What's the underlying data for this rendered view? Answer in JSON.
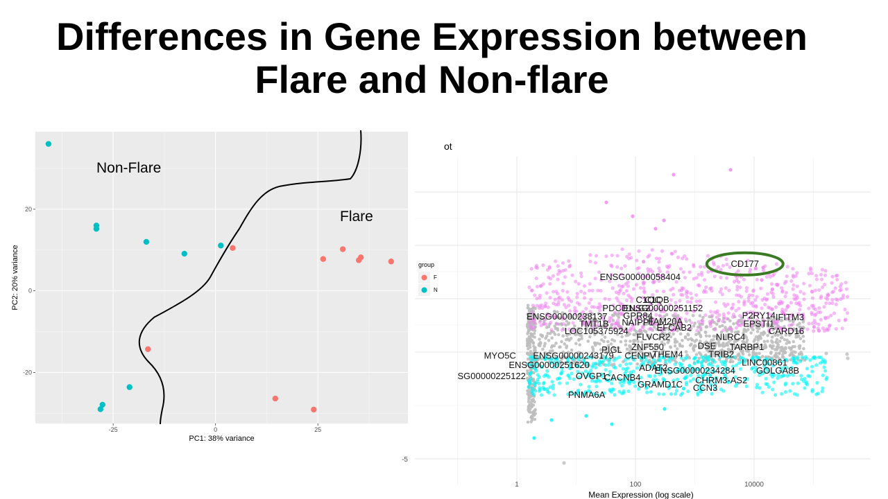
{
  "slide": {
    "title_line1": "Differences in Gene Expression between",
    "title_line2": "Flare and Non-flare"
  },
  "colors": {
    "flare": "#F8766D",
    "nonflare": "#00BFC4",
    "up": "#EE82EE",
    "down": "#00F5F5",
    "ns": "#BEBEBE",
    "panel": "#EBEBEB",
    "grid": "#FFFFFF",
    "highlight_ring": "#3A7A23"
  },
  "chart_data": [
    {
      "type": "scatter",
      "xlabel": "PC1: 38% variance",
      "ylabel": "PC2: 20% variance",
      "xlim": [
        -44,
        47
      ],
      "ylim": [
        -32.5,
        39
      ],
      "xticks": [
        -25,
        0,
        25
      ],
      "yticks": [
        -20,
        0,
        20
      ],
      "grid": true,
      "legend": {
        "title": "group",
        "position": "right",
        "entries": [
          "F",
          "N"
        ]
      },
      "annotations": [
        "Non-Flare",
        "Flare"
      ],
      "series": [
        {
          "name": "F",
          "color": "#F8766D",
          "points": [
            [
              4.2,
              10.5
            ],
            [
              26.3,
              7.8
            ],
            [
              31.1,
              10.2
            ],
            [
              35.0,
              7.5
            ],
            [
              35.5,
              8.2
            ],
            [
              42.9,
              7.2
            ],
            [
              -16.5,
              -14.3
            ],
            [
              14.6,
              -26.4
            ],
            [
              24.0,
              -29.1
            ]
          ]
        },
        {
          "name": "N",
          "color": "#00BFC4",
          "points": [
            [
              -40.8,
              36
            ],
            [
              -29.1,
              16
            ],
            [
              -29.1,
              15.2
            ],
            [
              -16.9,
              12
            ],
            [
              -7.6,
              9.1
            ],
            [
              1.3,
              11.1
            ],
            [
              -21.0,
              -23.6
            ],
            [
              -27.6,
              -27.9
            ],
            [
              -28.1,
              -29.0
            ]
          ]
        }
      ]
    },
    {
      "type": "scatter",
      "title_fragment": "ot",
      "xlabel": "Mean Expression (log scale)",
      "xscale": "log",
      "xticks": [
        "1",
        "100",
        "10000"
      ],
      "ylim": [
        -5.6,
        2.5
      ],
      "yticks": [
        -5
      ],
      "highlight": "CD177",
      "labels": [
        {
          "text": "CD177",
          "x": 7000,
          "y": 2.2
        },
        {
          "text": "ENSG00000058404",
          "x": 120,
          "y": 1.7
        },
        {
          "text": "C1QC",
          "x": 165,
          "y": 0.85
        },
        {
          "text": "C1QB",
          "x": 230,
          "y": 0.85
        },
        {
          "text": "PDCD1LG2",
          "x": 70,
          "y": 0.53
        },
        {
          "text": "ENSG00000251152",
          "x": 290,
          "y": 0.53
        },
        {
          "text": "GPR84",
          "x": 110,
          "y": 0.25
        },
        {
          "text": "ENSG00000238137",
          "x": 7,
          "y": 0.22
        },
        {
          "text": "P2RY14",
          "x": 12000,
          "y": 0.26
        },
        {
          "text": "IFITM3",
          "x": 40000,
          "y": 0.2
        },
        {
          "text": "NAIPP1",
          "x": 110,
          "y": 0.0
        },
        {
          "text": "FAM20A",
          "x": 320,
          "y": 0.04
        },
        {
          "text": "TMT1B",
          "x": 20,
          "y": -0.05
        },
        {
          "text": "EPSTI1",
          "x": 12000,
          "y": -0.05
        },
        {
          "text": "EFCAB2",
          "x": 450,
          "y": -0.2
        },
        {
          "text": "LOC105375924",
          "x": 22,
          "y": -0.32
        },
        {
          "text": "CARD16",
          "x": 35000,
          "y": -0.32
        },
        {
          "text": "FLVCR2",
          "x": 200,
          "y": -0.55
        },
        {
          "text": "NLRC4",
          "x": 4000,
          "y": -0.55
        },
        {
          "text": "DSE",
          "x": 1600,
          "y": -0.88
        },
        {
          "text": "ZNF550",
          "x": 160,
          "y": -0.92
        },
        {
          "text": "TARBP1",
          "x": 7500,
          "y": -0.92
        },
        {
          "text": "PIGL",
          "x": 40,
          "y": -1.02
        },
        {
          "text": "MYO5C",
          "x": 0.52,
          "y": -1.25
        },
        {
          "text": "ENSG00000243179",
          "x": 9,
          "y": -1.25
        },
        {
          "text": "CENPV",
          "x": 120,
          "y": -1.25
        },
        {
          "text": "THEM4",
          "x": 350,
          "y": -1.2
        },
        {
          "text": "TRIB2",
          "x": 2800,
          "y": -1.2
        },
        {
          "text": "LINC00861",
          "x": 15000,
          "y": -1.51
        },
        {
          "text": "ENSG00000251620",
          "x": 3.5,
          "y": -1.6
        },
        {
          "text": "ADAT2",
          "x": 200,
          "y": -1.7
        },
        {
          "text": "ENSG00000234284",
          "x": 1000,
          "y": -1.8
        },
        {
          "text": "GOLGA8B",
          "x": 25000,
          "y": -1.8
        },
        {
          "text": "SG00000225122",
          "x": 0.1,
          "y": -2.01
        },
        {
          "text": "OVGP1",
          "x": 18,
          "y": -2.01
        },
        {
          "text": "CACNB4",
          "x": 60,
          "y": -2.06
        },
        {
          "text": "CHRM3-AS2",
          "x": 2800,
          "y": -2.17
        },
        {
          "text": "GRAMD1C",
          "x": 260,
          "y": -2.33
        },
        {
          "text": "CCN3",
          "x": 1500,
          "y": -2.45
        },
        {
          "text": "PNMA6A",
          "x": 15,
          "y": -2.72
        }
      ]
    }
  ]
}
